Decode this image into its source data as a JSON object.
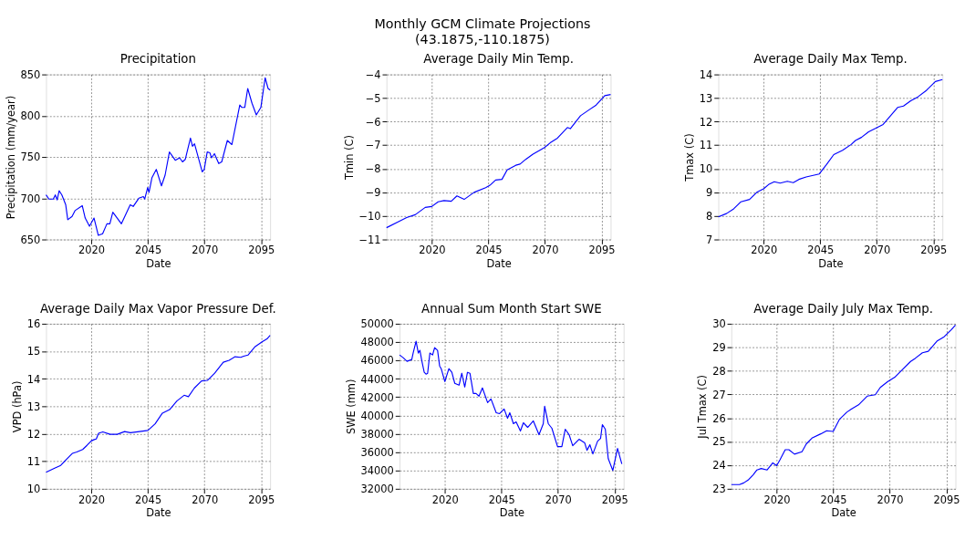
{
  "chart_data": [
    {
      "type": "other",
      "title": "Monthly GCM Climate Projections",
      "subtitle": "(43.1875,-110.1875)"
    },
    {
      "type": "line",
      "title": "Precipitation",
      "xlabel": "Date",
      "ylabel": "Precipitation (mm/year)",
      "xlim": [
        2000,
        2099
      ],
      "xticks": [
        2020,
        2045,
        2070,
        2095
      ],
      "ylim": [
        650,
        850
      ],
      "yticks": [
        650,
        700,
        750,
        800,
        850
      ],
      "grid": true,
      "series": [
        {
          "color": "#0000ff",
          "x": [
            2000,
            2001.3,
            2003.2,
            2004.1,
            2004.9,
            2005.8,
            2007,
            2008.7,
            2009.6,
            2011.5,
            2012.8,
            2016,
            2017.3,
            2019.2,
            2021.2,
            2023.1,
            2025,
            2026.9,
            2028.2,
            2029.5,
            2033.3,
            2037.2,
            2038.5,
            2041,
            2043,
            2043.6,
            2044.9,
            2045.5,
            2046.8,
            2048.7,
            2051,
            2052.6,
            2054.5,
            2057.1,
            2059,
            2060.3,
            2061.5,
            2063.8,
            2064.7,
            2065.6,
            2069,
            2069.9,
            2071.2,
            2072.4,
            2073.1,
            2074.4,
            2076.3,
            2077.6,
            2080.1,
            2082.1,
            2085.6,
            2086.5,
            2087.8,
            2089.1,
            2091,
            2092.9,
            2094.9,
            2096.8,
            2098.1,
            2099
          ],
          "values": [
            704,
            699,
            699,
            704,
            698,
            709,
            704,
            692,
            674,
            678,
            685,
            691,
            676,
            666,
            676,
            655,
            657,
            669,
            669,
            683,
            669,
            692,
            690,
            700,
            702,
            699,
            713,
            707,
            725,
            735,
            715,
            728,
            756,
            746,
            749,
            744,
            747,
            773,
            763,
            766,
            732,
            735,
            756,
            755,
            749,
            754,
            742,
            744,
            770,
            765,
            813,
            810,
            810,
            833,
            815,
            801,
            810,
            846,
            833,
            831
          ]
        }
      ]
    },
    {
      "type": "line",
      "title": "Average Daily Min Temp.",
      "xlabel": "Date",
      "ylabel": "Tmin (C)",
      "xlim": [
        2000,
        2099
      ],
      "xticks": [
        2020,
        2045,
        2070,
        2095
      ],
      "ylim": [
        -11,
        -4
      ],
      "yticks": [
        -11,
        -10,
        -9,
        -8,
        -7,
        -6,
        -5,
        -4
      ],
      "grid": true,
      "series": [
        {
          "color": "#0000ff",
          "x": [
            2000,
            2005.1,
            2008.9,
            2012.7,
            2017.1,
            2020,
            2022.8,
            2025.4,
            2028.6,
            2031.1,
            2034.3,
            2038.7,
            2043.8,
            2045.7,
            2048.2,
            2051,
            2053.3,
            2057.1,
            2059,
            2061.5,
            2064.7,
            2069.8,
            2072.3,
            2075.5,
            2079.9,
            2081.2,
            2085.7,
            2089.5,
            2092.6,
            2096.4,
            2099
          ],
          "values": [
            -10.5,
            -10.25,
            -10.07,
            -9.95,
            -9.64,
            -9.6,
            -9.4,
            -9.35,
            -9.38,
            -9.15,
            -9.3,
            -9.0,
            -8.8,
            -8.7,
            -8.48,
            -8.45,
            -8.05,
            -7.85,
            -7.8,
            -7.6,
            -7.38,
            -7.1,
            -6.9,
            -6.7,
            -6.25,
            -6.3,
            -5.75,
            -5.5,
            -5.3,
            -4.9,
            -4.85
          ]
        }
      ]
    },
    {
      "type": "line",
      "title": "Average Daily Max Temp.",
      "xlabel": "Date",
      "ylabel": "Tmax (C)",
      "xlim": [
        2000,
        2099
      ],
      "xticks": [
        2020,
        2045,
        2070,
        2095
      ],
      "ylim": [
        7,
        14
      ],
      "yticks": [
        7,
        8,
        9,
        10,
        11,
        12,
        13,
        14
      ],
      "grid": true,
      "series": [
        {
          "color": "#0000ff",
          "x": [
            2000,
            2003.6,
            2006.8,
            2010,
            2013.8,
            2017,
            2020,
            2022.2,
            2024.7,
            2027.3,
            2030.5,
            2033.1,
            2035.6,
            2038.8,
            2044.6,
            2047.8,
            2051,
            2054.9,
            2058.7,
            2060.6,
            2063.2,
            2066.4,
            2069.6,
            2072.8,
            2076,
            2079.2,
            2081.8,
            2085,
            2088.2,
            2092,
            2095.9,
            2099
          ],
          "values": [
            7.96,
            8.1,
            8.3,
            8.6,
            8.7,
            9.0,
            9.15,
            9.33,
            9.45,
            9.39,
            9.47,
            9.41,
            9.55,
            9.65,
            9.78,
            10.18,
            10.6,
            10.78,
            11.03,
            11.2,
            11.33,
            11.57,
            11.72,
            11.88,
            12.24,
            12.6,
            12.66,
            12.88,
            13.05,
            13.33,
            13.7,
            13.78
          ]
        }
      ]
    },
    {
      "type": "line",
      "title": "Average Daily Max Vapor Pressure Def.",
      "xlabel": "Date",
      "ylabel": "VPD (hPa)",
      "xlim": [
        2000,
        2099
      ],
      "xticks": [
        2020,
        2045,
        2070,
        2095
      ],
      "ylim": [
        10,
        16
      ],
      "yticks": [
        10,
        11,
        12,
        13,
        14,
        15,
        16
      ],
      "grid": true,
      "series": [
        {
          "color": "#0000ff",
          "x": [
            2000,
            2003.8,
            2006.5,
            2009.1,
            2011.7,
            2013.6,
            2016.2,
            2018.1,
            2020,
            2021.3,
            2022.2,
            2023.2,
            2025.1,
            2028.3,
            2031.5,
            2034.7,
            2037.3,
            2040.5,
            2045,
            2048.2,
            2051.4,
            2054.6,
            2057.8,
            2061,
            2062.9,
            2065.5,
            2068.7,
            2071.3,
            2074.5,
            2078.3,
            2080.9,
            2083.5,
            2086,
            2087.3,
            2089.2,
            2092.4,
            2095.6,
            2097.6,
            2099
          ],
          "values": [
            10.6,
            10.75,
            10.85,
            11.08,
            11.29,
            11.34,
            11.43,
            11.58,
            11.74,
            11.79,
            11.81,
            12.02,
            12.07,
            11.98,
            11.98,
            12.08,
            12.04,
            12.07,
            12.12,
            12.36,
            12.75,
            12.88,
            13.19,
            13.4,
            13.35,
            13.66,
            13.92,
            13.94,
            14.2,
            14.6,
            14.67,
            14.8,
            14.78,
            14.82,
            14.86,
            15.17,
            15.35,
            15.45,
            15.58
          ]
        }
      ]
    },
    {
      "type": "line",
      "title": "Annual Sum Month Start SWE",
      "xlabel": "Date",
      "ylabel": "SWE (mm)",
      "xlim": [
        2000,
        2099
      ],
      "xticks": [
        2020,
        2045,
        2070,
        2095
      ],
      "ylim": [
        32000,
        50000
      ],
      "yticks": [
        32000,
        34000,
        36000,
        38000,
        40000,
        42000,
        44000,
        46000,
        48000,
        50000
      ],
      "grid": true,
      "series": [
        {
          "color": "#0000ff",
          "x": [
            2000,
            2001.6,
            2003.3,
            2005.4,
            2006,
            2007.3,
            2008.3,
            2009,
            2009.8,
            2010.9,
            2011.7,
            2012.4,
            2013.4,
            2014.6,
            2015.5,
            2016.8,
            2017.7,
            2018.4,
            2020,
            2021.8,
            2023.1,
            2024.4,
            2026.3,
            2027.5,
            2028.8,
            2030,
            2031.1,
            2032.6,
            2033.8,
            2035.1,
            2036.6,
            2038.9,
            2040.4,
            2042.7,
            2044.2,
            2046.2,
            2047.7,
            2048.7,
            2050.3,
            2051.5,
            2053.4,
            2054.7,
            2056.6,
            2059.1,
            2061.6,
            2063.5,
            2064.1,
            2065.7,
            2067.3,
            2069.8,
            2071.7,
            2073.2,
            2074.9,
            2076.5,
            2079.3,
            2081.8,
            2082.8,
            2084.1,
            2085.4,
            2087.5,
            2088.8,
            2089.6,
            2090.9,
            2092.2,
            2094.2,
            2096.3,
            2098.2
          ],
          "values": [
            46600,
            46300,
            45900,
            46100,
            46800,
            48100,
            46800,
            47100,
            46000,
            44700,
            44500,
            44600,
            46800,
            46600,
            47400,
            47100,
            45400,
            45100,
            43700,
            45100,
            44700,
            43500,
            43300,
            44600,
            43100,
            44700,
            44600,
            42400,
            42400,
            42100,
            43000,
            41400,
            41800,
            40300,
            40200,
            40700,
            39700,
            40300,
            39100,
            39300,
            38300,
            39200,
            38700,
            39400,
            37900,
            39100,
            41000,
            39100,
            38600,
            36600,
            36600,
            38500,
            37900,
            36700,
            37400,
            37000,
            36200,
            36800,
            35800,
            37200,
            37500,
            39000,
            38500,
            35300,
            34000,
            36400,
            34700
          ]
        }
      ]
    },
    {
      "type": "line",
      "title": "Average Daily July Max Temp.",
      "xlabel": "Date",
      "ylabel": "Jul Tmax (C)",
      "xlim": [
        2000,
        2099
      ],
      "xticks": [
        2020,
        2045,
        2070,
        2095
      ],
      "ylim": [
        23,
        30
      ],
      "yticks": [
        23,
        24,
        25,
        26,
        27,
        28,
        29,
        30
      ],
      "grid": true,
      "series": [
        {
          "color": "#0000ff",
          "x": [
            2000,
            2003.6,
            2005.5,
            2007.4,
            2009.7,
            2011.3,
            2013.2,
            2015.8,
            2018.3,
            2020,
            2021.5,
            2023.8,
            2025.4,
            2027.9,
            2031.2,
            2033.1,
            2035.6,
            2039.5,
            2042.1,
            2045,
            2047.8,
            2051,
            2053,
            2056.2,
            2060,
            2063.6,
            2065.8,
            2069,
            2072.2,
            2075.4,
            2079.2,
            2081.2,
            2084.4,
            2087,
            2090.8,
            2094,
            2097.2,
            2099
          ],
          "values": [
            23.18,
            23.18,
            23.25,
            23.37,
            23.6,
            23.8,
            23.86,
            23.8,
            24.1,
            23.98,
            24.23,
            24.66,
            24.66,
            24.47,
            24.57,
            24.9,
            25.15,
            25.33,
            25.46,
            25.43,
            25.95,
            26.25,
            26.38,
            26.56,
            26.93,
            26.99,
            27.3,
            27.54,
            27.73,
            28.04,
            28.4,
            28.53,
            28.77,
            28.83,
            29.26,
            29.45,
            29.75,
            29.94
          ]
        }
      ]
    }
  ]
}
